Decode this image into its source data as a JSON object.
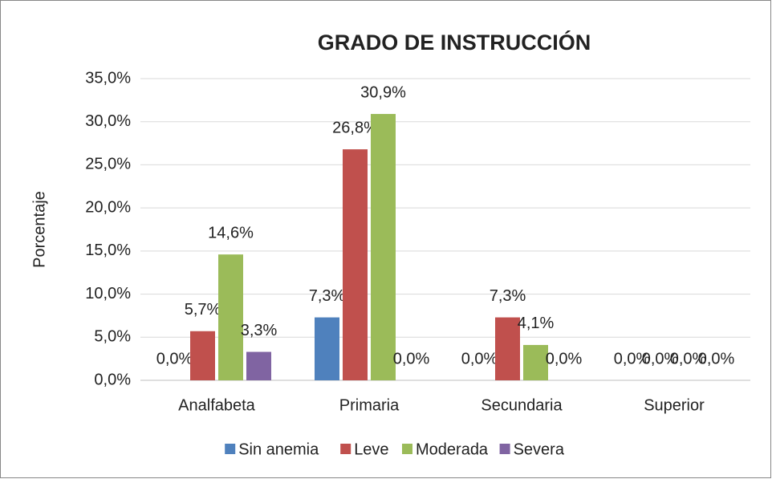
{
  "chart_data": {
    "type": "bar",
    "title": "GRADO DE INSTRUCCIÓN",
    "y_label": "Porcentaje",
    "categories": [
      "Analfabeta",
      "Primaria",
      "Secundaria",
      "Superior"
    ],
    "series": [
      {
        "name": "Sin anemia",
        "color": "#4f81bd",
        "values": [
          0,
          7.3,
          0,
          0
        ],
        "value_labels": [
          "0,0%",
          "7,3%",
          "0,0%",
          "0,0%"
        ]
      },
      {
        "name": "Leve",
        "color": "#c0504d",
        "values": [
          5.7,
          26.8,
          7.3,
          0
        ],
        "value_labels": [
          "5,7%",
          "26,8%",
          "7,3%",
          "0,0%"
        ]
      },
      {
        "name": "Moderada",
        "color": "#9bbb59",
        "values": [
          14.6,
          30.9,
          4.1,
          0
        ],
        "value_labels": [
          "14,6%",
          "30,9%",
          "4,1%",
          "0,0%"
        ]
      },
      {
        "name": "Severa",
        "color": "#8064a2",
        "values": [
          3.3,
          0,
          0,
          0
        ],
        "value_labels": [
          "3,3%",
          "0,0%",
          "0,0%",
          "0,0%"
        ]
      }
    ],
    "ylim": [
      0,
      35
    ],
    "yticks": [
      {
        "value": 0,
        "label": "0,0%"
      },
      {
        "value": 5,
        "label": "5,0%"
      },
      {
        "value": 10,
        "label": "10,0%"
      },
      {
        "value": 15,
        "label": "15,0%"
      },
      {
        "value": 20,
        "label": "20,0%"
      },
      {
        "value": 25,
        "label": "25,0%"
      },
      {
        "value": 30,
        "label": "30,0%"
      },
      {
        "value": 35,
        "label": "35,0%"
      }
    ],
    "grid": true,
    "legend": "bottom"
  }
}
